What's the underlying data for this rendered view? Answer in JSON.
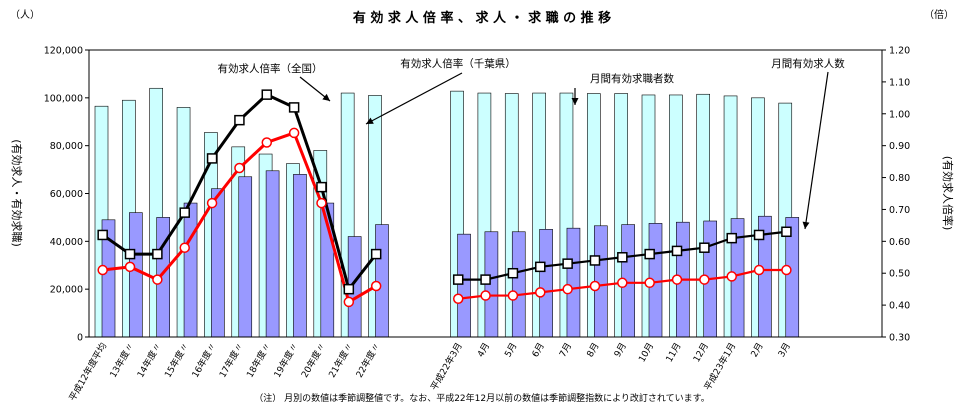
{
  "chart_data": {
    "type": "bar",
    "title": "有 効 求 人 倍 率 、 求 人 ・ 求 職 の 推 移",
    "left_unit": "（人）",
    "right_unit": "（倍）",
    "ylabel": "(有効求人・有効求職)",
    "y2label": "(有効求人倍率)",
    "ylim": [
      0,
      120000
    ],
    "y2lim": [
      0.3,
      1.2
    ],
    "yticks": [
      "0",
      "20,000",
      "40,000",
      "60,000",
      "80,000",
      "100,000",
      "120,000"
    ],
    "y2ticks": [
      "0.30",
      "0.40",
      "0.50",
      "0.60",
      "0.70",
      "0.80",
      "0.90",
      "1.00",
      "1.10",
      "1.20"
    ],
    "categories": [
      "平成12年度平均",
      "13年度〃",
      "14年度〃",
      "15年度〃",
      "16年度〃",
      "17年度〃",
      "18年度〃",
      "19年度〃",
      "20年度〃",
      "21年度〃",
      "22年度〃",
      "平成22年3月",
      "4月",
      "5月",
      "6月",
      "7月",
      "8月",
      "9月",
      "10月",
      "11月",
      "12月",
      "平成23年1月",
      "2月",
      "3月"
    ],
    "series": [
      {
        "name": "月間有効求職者数",
        "type": "bar",
        "color": "#ccffff",
        "values": [
          96500,
          99000,
          104000,
          96000,
          85500,
          79500,
          76500,
          72500,
          78000,
          102000,
          101000,
          102800,
          102000,
          101800,
          102000,
          102000,
          101800,
          101800,
          101200,
          101200,
          101500,
          100800,
          100000,
          97800
        ]
      },
      {
        "name": "月間有効求人数",
        "type": "bar",
        "color": "#9999ff",
        "values": [
          49000,
          52000,
          50000,
          56000,
          62000,
          67000,
          69500,
          68000,
          56000,
          42000,
          47000,
          43000,
          44000,
          44000,
          45000,
          45500,
          46500,
          47000,
          47500,
          48000,
          48500,
          49500,
          50500,
          50000
        ]
      },
      {
        "name": "有効求人倍率（全国）",
        "type": "line",
        "axis": "right",
        "color": "#000000",
        "values": [
          0.62,
          0.56,
          0.56,
          0.69,
          0.86,
          0.98,
          1.06,
          1.02,
          0.77,
          0.45,
          0.56,
          0.48,
          0.48,
          0.5,
          0.52,
          0.53,
          0.54,
          0.55,
          0.56,
          0.57,
          0.58,
          0.61,
          0.62,
          0.63
        ]
      },
      {
        "name": "有効求人倍率（千葉県）",
        "type": "line",
        "axis": "right",
        "color": "#ff0000",
        "values": [
          0.51,
          0.52,
          0.48,
          0.58,
          0.72,
          0.83,
          0.91,
          0.94,
          0.72,
          0.41,
          0.46,
          0.42,
          0.43,
          0.43,
          0.44,
          0.45,
          0.46,
          0.47,
          0.47,
          0.48,
          0.48,
          0.49,
          0.51,
          0.51
        ]
      }
    ],
    "annotations": [
      "有効求人倍率（全国）",
      "有効求人倍率（千葉県）",
      "月間有効求職者数",
      "月間有効求人数"
    ],
    "note": "（注） 月別の数値は季節調整値です。なお、平成22年12月以前の数値は季節調整指数により改訂されています。",
    "grid": false,
    "legend": "none"
  }
}
